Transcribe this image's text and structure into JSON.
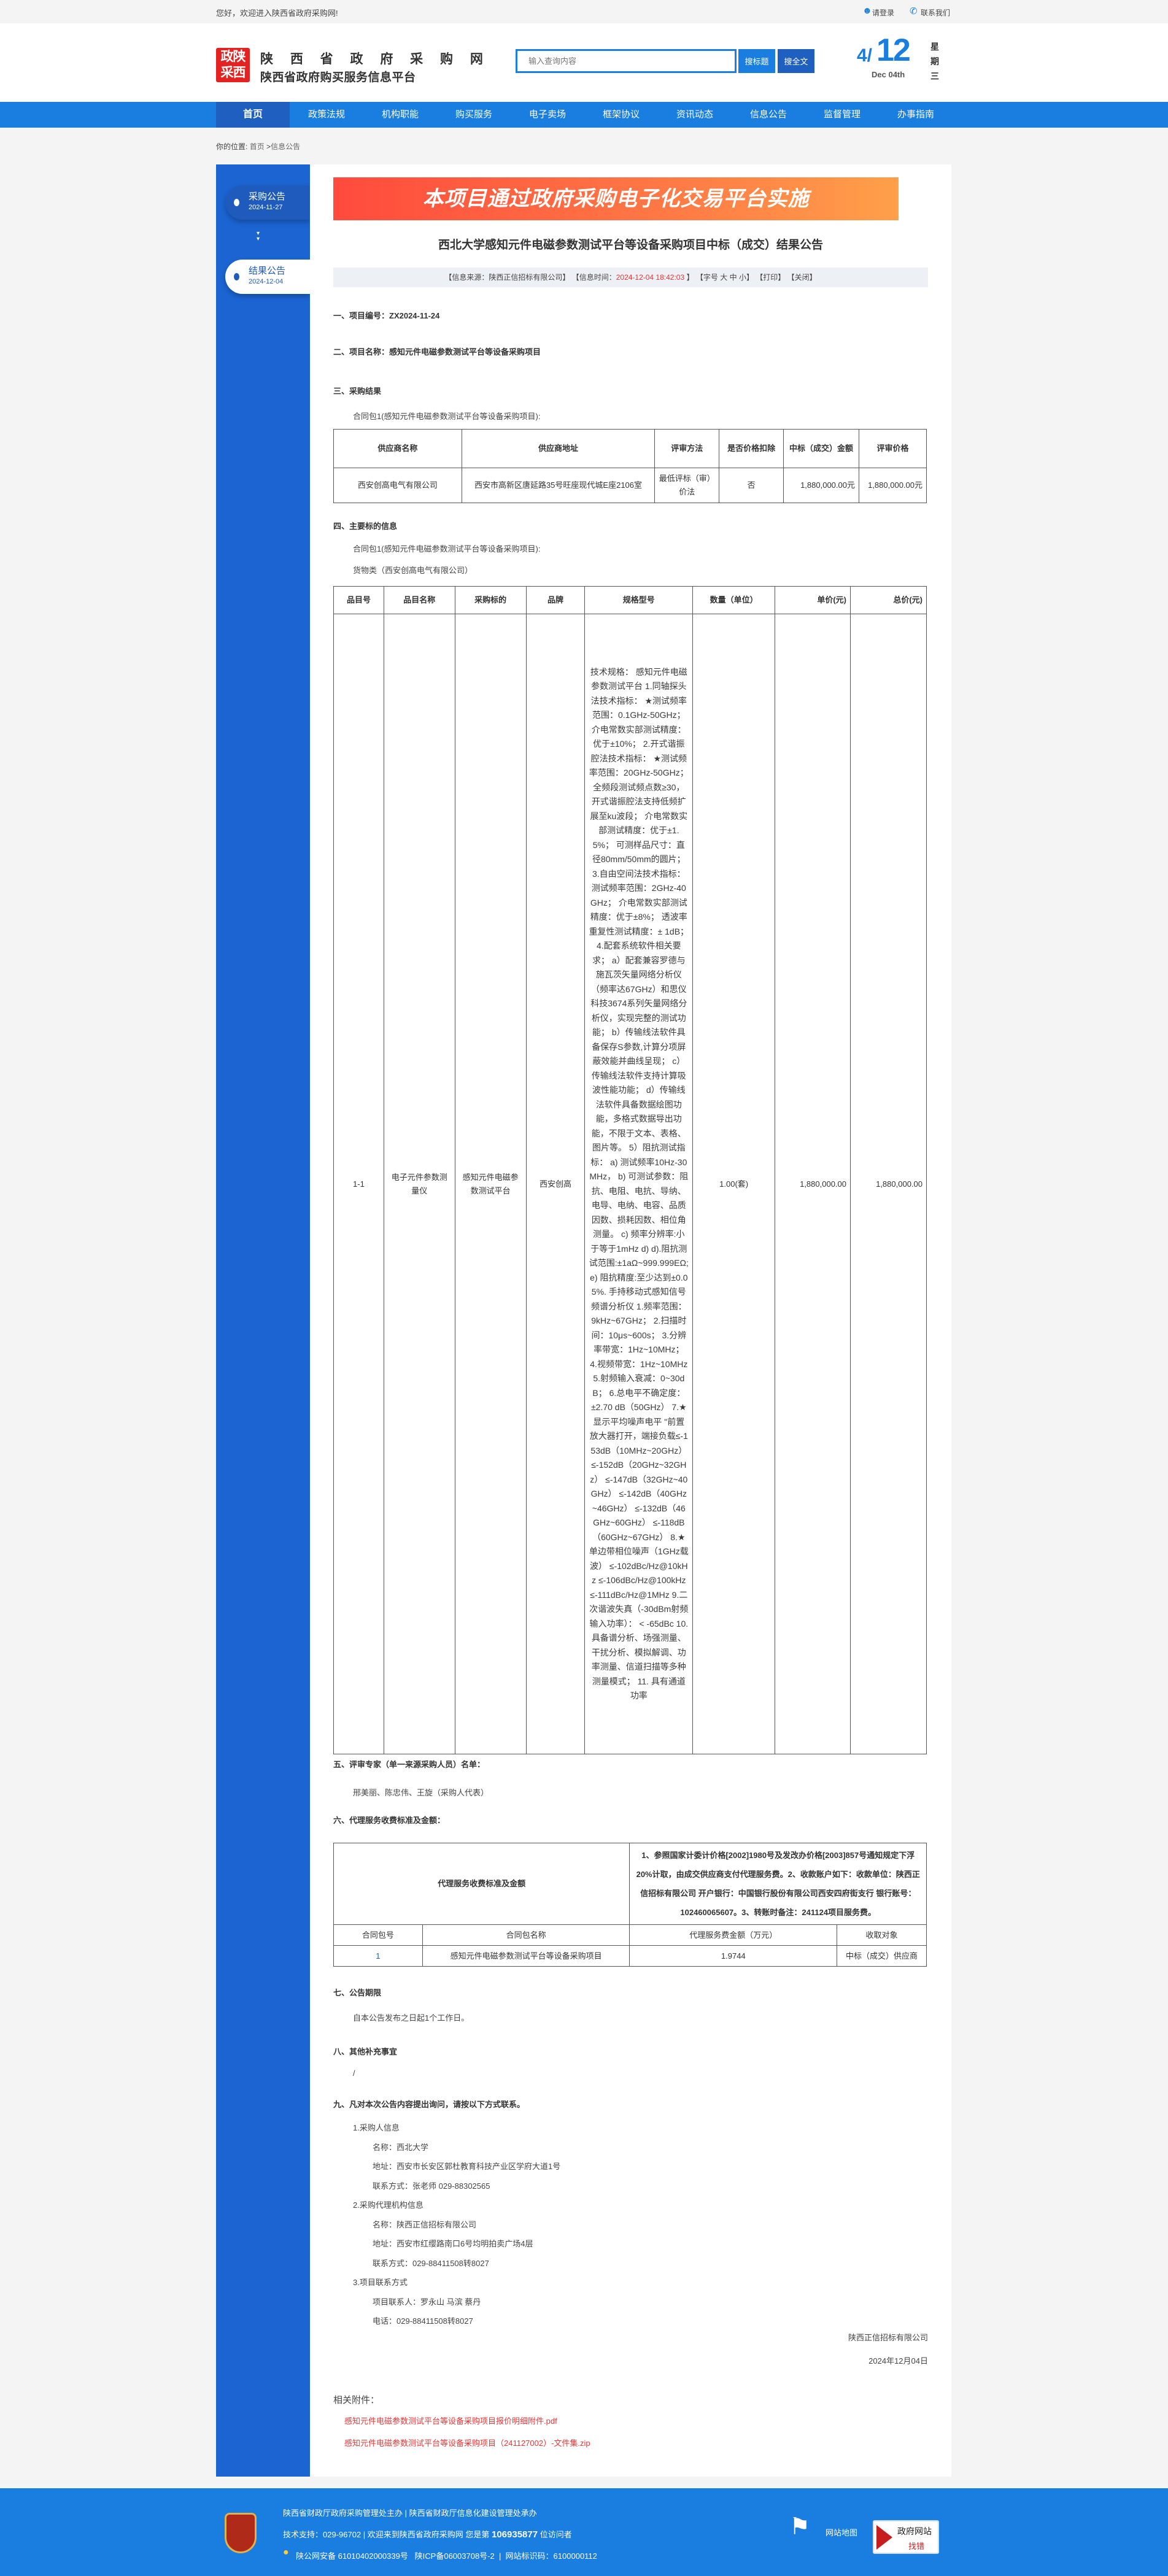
{
  "topbar": {
    "welcome": "您好，欢迎进入陕西省政府采购网!",
    "login": "请登录",
    "contact": "联系我们"
  },
  "header": {
    "logo_text": "陕西采购政府",
    "site_title": "陕 西 省 政 府 采 购 网",
    "site_subtitle": "陕西省政府购买服务信息平台",
    "search_placeholder": "输入查询内容",
    "search_title_btn": "搜标题",
    "search_full_btn": "搜全文",
    "date_month": "4/",
    "date_day": "12",
    "date_en": "Dec 04th",
    "weekday": "星期三"
  },
  "nav": {
    "items": [
      "首页",
      "政策法规",
      "机构职能",
      "购买服务",
      "电子卖场",
      "框架协议",
      "资讯动态",
      "信息公告",
      "监督管理",
      "办事指南"
    ],
    "active": "首页"
  },
  "breadcrumb": {
    "label": "你的位置:",
    "home": "首页",
    "sep": ">",
    "current": "信息公告"
  },
  "timeline": [
    {
      "label": "采购公告",
      "date": "2024-11-27",
      "active": false
    },
    {
      "label": "结果公告",
      "date": "2024-12-04",
      "active": true
    }
  ],
  "banner": "本项目通过政府采购电子化交易平台实施",
  "article": {
    "title": "西北大学感知元件电磁参数测试平台等设备采购项目中标（成交）结果公告",
    "info": {
      "source_label": "【信息来源：",
      "source": "陕西正信招标有限公司】",
      "time_label": "【信息时间：",
      "time": "2024-12-04 18:42:03",
      "time_end": "】",
      "font_label": "【字号",
      "font_big": "大",
      "font_mid": "中",
      "font_small": "小】",
      "print": "【打印】",
      "close": "【关闭】"
    },
    "s1": "一、项目编号：ZX2024-11-24",
    "s2": "二、项目名称：感知元件电磁参数测试平台等设备采购项目",
    "s3": "三、采购结果",
    "s3_pkg": "合同包1(感知元件电磁参数测试平台等设备采购项目):",
    "t1_headers": [
      "供应商名称",
      "供应商地址",
      "评审方法",
      "是否价格扣除",
      "中标（成交）金额",
      "评审价格"
    ],
    "t1_row": [
      "西安创高电气有限公司",
      "西安市高新区唐延路35号旺座现代城E座2106室",
      "最低评标（审）价法",
      "否",
      "1,880,000.00元",
      "1,880,000.00元"
    ],
    "s4": "四、主要标的信息",
    "s4_pkg": "合同包1(感知元件电磁参数测试平台等设备采购项目):",
    "s4_type": "货物类（西安创高电气有限公司）",
    "t2_headers": [
      "品目号",
      "品目名称",
      "采购标的",
      "品牌",
      "规格型号",
      "数量（单位）",
      "单价(元)",
      "总价(元)"
    ],
    "t2_row": [
      "1-1",
      "电子元件参数测量仪",
      "感知元件电磁参数测试平台",
      "西安创高",
      "技术规格： 感知元件电磁参数测试平台 1.同轴探头法技术指标： ★测试频率范围：0.1GHz-50GHz； 介电常数实部测试精度：优于±10%； 2.开式谐振腔法技术指标： ★测试频率范围：20GHz-50GHz； 全频段测试频点数≥30，开式谐振腔法支持低频扩展至ku波段； 介电常数实部测试精度：优于±1.5%； 可测样品尺寸：直径80mm/50mm的圆片； 3.自由空间法技术指标： 测试频率范围：2GHz-40GHz； 介电常数实部测试精度：优于±8%； 透波率重复性测试精度：± 1dB； 4.配套系统软件相关要求； a）配套兼容罗德与施瓦茨矢量网络分析仪（频率达67GHz）和思仪科技3674系列矢量网络分析仪，实现完整的测试功能； b）传输线法软件具备保存S参数,计算分项屏蔽效能并曲线呈现； c）传输线法软件支持计算吸波性能功能； d）传输线法软件具备数据绘图功能，多格式数据导出功能，不限于文本、表格、图片等。 5）阻抗测试指标： a) 测试频率10Hz-30MHz， b) 可测试参数：阻抗、电阻、电抗、导纳、电导、电纳、电容、品质因数、损耗因数、相位角测量。 c) 频率分辨率:小于等于1mHz d) d).阻抗测试范围:±1aΩ~999.999EΩ;e) 阻抗精度:至少达到±0.05%. 手持移动式感知信号频谱分析仪 1.频率范围：9kHz~67GHz； 2.扫描时间：10μs~600s； 3.分辨率带宽：1Hz~10MHz； 4.视频带宽：1Hz~10MHz 5.射频输入衰减：0~30dB； 6.总电平不确定度：±2.70 dB（50GHz） 7.★显示平均噪声电平 \"前置放大器打开，端接负载≤-153dB（10MHz~20GHz） ≤-152dB（20GHz~32GHz） ≤-147dB（32GHz~40GHz） ≤-142dB（40GHz~46GHz） ≤-132dB（46GHz~60GHz） ≤-118dB（60GHz~67GHz） 8.★单边带相位噪声（1GHz载波） ≤-102dBc/Hz@10kHz ≤-106dBc/Hz@100kHz ≤-111dBc/Hz@1MHz 9.二次谐波失真（-30dBm射频输入功率）： < -65dBc 10.具备谱分析、场强测量、干扰分析、模拟解调、功率测量、信道扫描等多种测量模式； 11. 具有通道功率",
      "1.00(套)",
      "1,880,000.00",
      "1,880,000.00"
    ],
    "s5": "五、评审专家（单一来源采购人员）名单：",
    "s5_names": "邢美丽、陈忠伟、王旋（采购人代表）",
    "s6": "六、代理服务收费标准及金额：",
    "t3_title": "代理服务收费标准及金额",
    "t3_desc": "1、参照国家计委计价格[2002]1980号及发改办价格[2003]857号通知规定下浮20%计取，由成交供应商支付代理服务费。2、收款账户如下：收款单位：陕西正信招标有限公司 开户银行：中国银行股份有限公司西安四府街支行 银行账号：102460065607。3、转账时备注：241124项目服务费。",
    "t3_headers": [
      "合同包号",
      "合同包名称",
      "代理服务费金额（万元）",
      "收取对象"
    ],
    "t3_row": [
      "1",
      "感知元件电磁参数测试平台等设备采购项目",
      "1.9744",
      "中标（成交）供应商"
    ],
    "s7": "七、公告期限",
    "s7_text": "自本公告发布之日起1个工作日。",
    "s8": "八、其他补充事宜",
    "s8_text": "/",
    "s9": "九、凡对本次公告内容提出询问，请按以下方式联系。",
    "contacts": [
      {
        "text": "1.采购人信息",
        "indent": 1
      },
      {
        "text": "名称：西北大学",
        "indent": 2
      },
      {
        "text": "地址：西安市长安区郭杜教育科技产业区学府大道1号",
        "indent": 2
      },
      {
        "text": "联系方式：张老师 029-88302565",
        "indent": 2
      },
      {
        "text": "2.采购代理机构信息",
        "indent": 1
      },
      {
        "text": "名称：陕西正信招标有限公司",
        "indent": 2
      },
      {
        "text": "地址：西安市红缨路南口6号均明拍卖广场4层",
        "indent": 2
      },
      {
        "text": "联系方式：029-88411508转8027",
        "indent": 2
      },
      {
        "text": "3.项目联系方式",
        "indent": 1
      },
      {
        "text": "项目联系人：罗永山 马滨 蔡丹",
        "indent": 2
      },
      {
        "text": "电话：029-88411508转8027",
        "indent": 2
      }
    ],
    "signature": "陕西正信招标有限公司",
    "sign_date": "2024年12月04日",
    "attach_label": "相关附件：",
    "attachments": [
      "感知元件电磁参数测试平台等设备采购项目报价明细附件.pdf",
      "感知元件电磁参数测试平台等设备采购项目（241127002）-文件集.zip"
    ]
  },
  "footer": {
    "emblem_text": "党政机关",
    "line1": "陕西省财政厅政府采购管理处主办 | 陕西省财政厅信息化建设管理处承办",
    "line2_prefix": "技术支持：029-96702 | 欢迎来到陕西省政府采购网 您是第 ",
    "visitors": "106935877",
    "line2_suffix": " 位访问者",
    "line3": "陕公网安备 61010402000339号   陕ICP备06003708号-2  |  网站标识码：6100000112",
    "sitemap": "网站地图",
    "error_top": "政府网站",
    "error_bottom": "找错"
  },
  "colors": {
    "nav_blue": "#1a7de0",
    "nav_active": "#1f5fbf",
    "sidebar": "#1b64d2",
    "banner_start": "#ff4a3d",
    "banner_end": "#ffa04a",
    "highlight_red": "#ff2b2b"
  }
}
